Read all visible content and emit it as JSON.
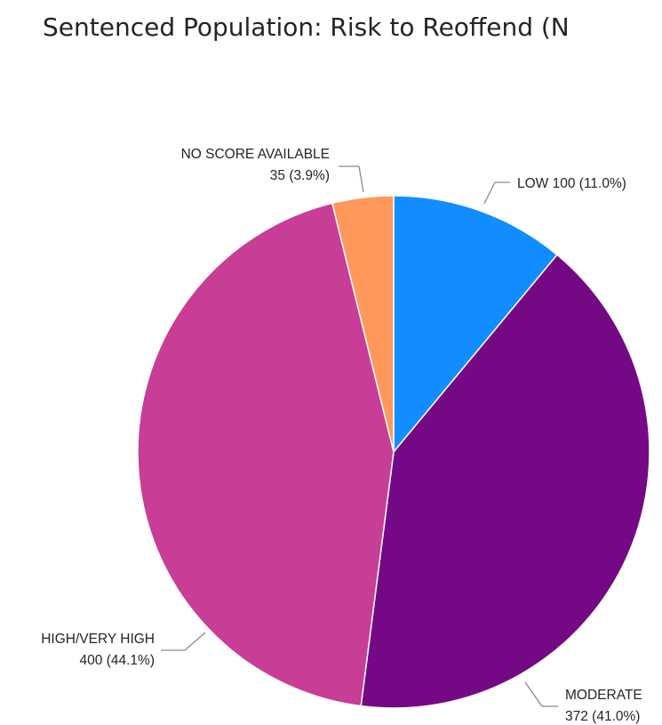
{
  "chart_data": {
    "type": "pie",
    "title": "Sentenced Population: Risk to Reoffend (N",
    "slices": [
      {
        "name": "LOW",
        "value": 100,
        "percent": "11.0%",
        "color": "#118DFF",
        "label_line1": "LOW 100 (11.0%)",
        "label_line2": ""
      },
      {
        "name": "MODERATE",
        "value": 372,
        "percent": "41.0%",
        "color": "#750985",
        "label_line1": "MODERATE",
        "label_line2": "372 (41.0%)"
      },
      {
        "name": "HIGH/VERY HIGH",
        "value": 400,
        "percent": "44.1%",
        "color": "#C83D95",
        "label_line1": "HIGH/VERY HIGH",
        "label_line2": "400 (44.1%)"
      },
      {
        "name": "NO SCORE AVAILABLE",
        "value": 35,
        "percent": "3.9%",
        "color": "#FF985A",
        "label_line1": "NO SCORE AVAILABLE",
        "label_line2": "35 (3.9%)"
      }
    ]
  }
}
